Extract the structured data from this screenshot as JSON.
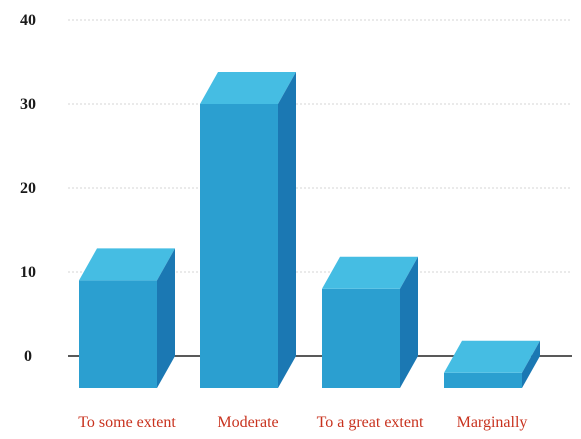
{
  "chart_data": {
    "type": "bar",
    "style": "3d",
    "categories": [
      "To some extent",
      "Moderate",
      "To a great extent",
      "Marginally"
    ],
    "values": [
      9,
      30,
      8,
      -2
    ],
    "ylim": [
      0,
      40
    ],
    "yticks": [
      0,
      10,
      20,
      30,
      40
    ],
    "grid": true,
    "legend": "none",
    "colors": {
      "bar_front": "#2b9fd0",
      "bar_top": "#45bde3",
      "bar_side": "#1b78b3",
      "category_label": "#c8321e",
      "grid": "#d6d6d6"
    }
  }
}
